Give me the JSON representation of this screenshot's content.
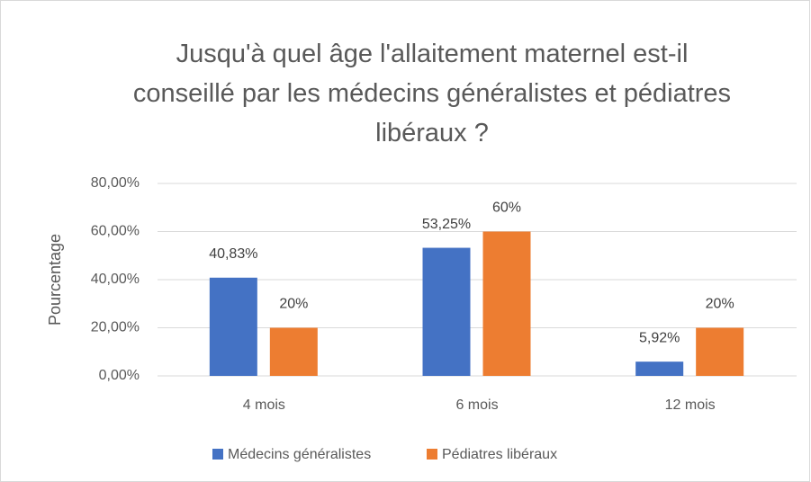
{
  "chart_data": {
    "type": "bar",
    "title": "Jusqu'à quel âge l'allaitement maternel est-il conseillé par les médecins généralistes et pédiatres libéraux ?",
    "y_label": "Pourcentage",
    "categories": [
      "4 mois",
      "6 mois",
      "12 mois"
    ],
    "series": [
      {
        "name": "Médecins généralistes",
        "color": "#4472c4",
        "values": [
          40.83,
          53.25,
          5.92
        ],
        "value_labels": [
          "40,83%",
          "53,25%",
          "5,92%"
        ]
      },
      {
        "name": "Pédiatres libéraux",
        "color": "#ed7d31",
        "values": [
          20,
          60,
          20
        ],
        "value_labels": [
          "20%",
          "60%",
          "20%"
        ]
      }
    ],
    "ylim": [
      0,
      80
    ],
    "yticks": [
      {
        "value": 0,
        "label": "0,00%"
      },
      {
        "value": 20,
        "label": "20,00%"
      },
      {
        "value": 40,
        "label": "40,00%"
      },
      {
        "value": 60,
        "label": "60,00%"
      },
      {
        "value": 80,
        "label": "80,00%"
      }
    ],
    "grid": true,
    "legend": "bottom"
  }
}
